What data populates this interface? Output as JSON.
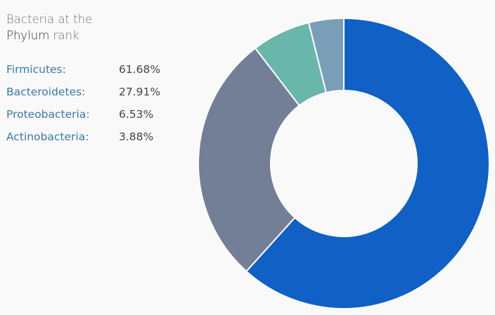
{
  "chart_data": {
    "type": "pie",
    "variant": "donut",
    "title_line1": "Bacteria at the",
    "title_rank": "Phylum",
    "title_suffix": "rank",
    "categories": [
      "Firmicutes",
      "Bacteroidetes",
      "Proteobacteria",
      "Actinobacteria"
    ],
    "labels": [
      "Firmicutes:",
      "Bacteroidetes:",
      "Proteobacteria:",
      "Actinobacteria:"
    ],
    "values": [
      61.68,
      27.91,
      6.53,
      3.88
    ],
    "value_labels": [
      "61.68%",
      "27.91%",
      "6.53%",
      "3.88%"
    ],
    "colors": [
      "#1060c6",
      "#737f96",
      "#69b6ab",
      "#7a9db8"
    ],
    "legend_position": "top-left"
  }
}
